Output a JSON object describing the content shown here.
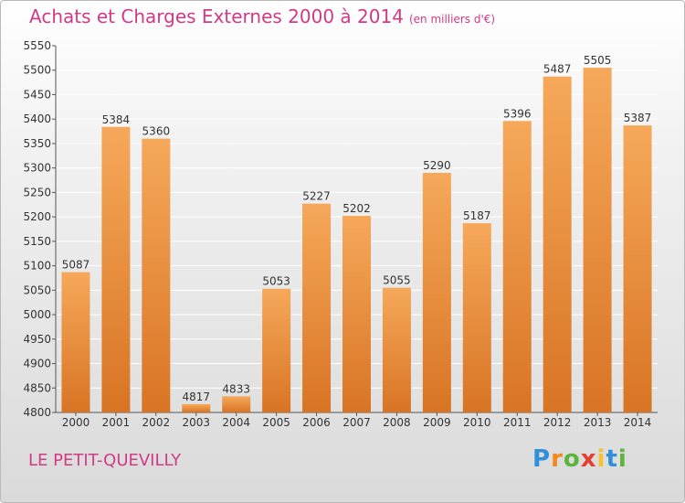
{
  "header": {
    "title": "Achats et Charges Externes 2000 à 2014",
    "subtitle": "(en milliers d'€)"
  },
  "footer": {
    "commune": "LE PETIT-QUEVILLY",
    "logo": [
      "P",
      "r",
      "o",
      "x",
      "i",
      "t",
      "i"
    ]
  },
  "colors": {
    "title": "#d23a86",
    "bar_light": "#f6a85a",
    "bar_dark": "#d87424",
    "grid": "#ffffff"
  },
  "chart_data": {
    "type": "bar",
    "title": "Achats et Charges Externes 2000 à 2014",
    "subtitle": "(en milliers d'€)",
    "categories": [
      "2000",
      "2001",
      "2002",
      "2003",
      "2004",
      "2005",
      "2006",
      "2007",
      "2008",
      "2009",
      "2010",
      "2011",
      "2012",
      "2013",
      "2014"
    ],
    "values": [
      5087,
      5384,
      5360,
      4817,
      4833,
      5053,
      5227,
      5202,
      5055,
      5290,
      5187,
      5396,
      5487,
      5505,
      5387
    ],
    "ylim": [
      4800,
      5550
    ],
    "yticks": [
      4800,
      4850,
      4900,
      4950,
      5000,
      5050,
      5100,
      5150,
      5200,
      5250,
      5300,
      5350,
      5400,
      5450,
      5500,
      5550
    ],
    "grid": true,
    "xlabel": "",
    "ylabel": ""
  }
}
